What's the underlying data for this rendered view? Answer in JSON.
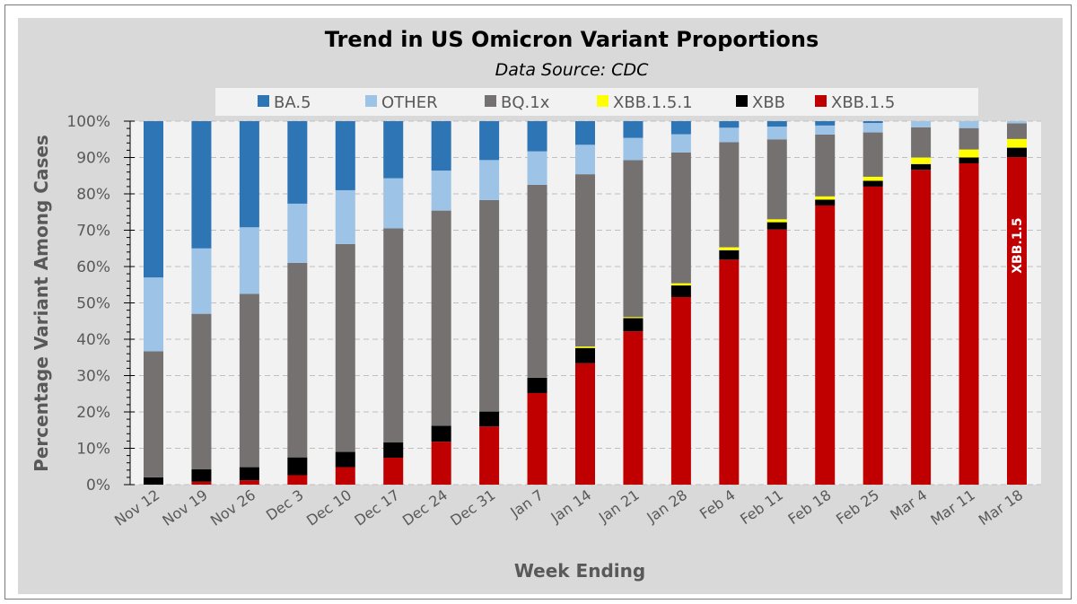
{
  "chart_data": {
    "type": "bar",
    "stacked": true,
    "normalized": true,
    "title": "Trend in US Omicron Variant Proportions",
    "subtitle": "Data Source: CDC",
    "xlabel": "Week Ending",
    "ylabel": "Percentage Variant Among Cases",
    "ylim": [
      0,
      100
    ],
    "yticks": [
      "0%",
      "10%",
      "20%",
      "30%",
      "40%",
      "50%",
      "60%",
      "70%",
      "80%",
      "90%",
      "100%"
    ],
    "grid": "horizontal-dashed",
    "legend_position": "top",
    "categories": [
      "Nov 12",
      "Nov 19",
      "Nov 26",
      "Dec 3",
      "Dec 10",
      "Dec 17",
      "Dec 24",
      "Dec 31",
      "Jan 7",
      "Jan 14",
      "Jan 21",
      "Jan 28",
      "Feb 4",
      "Feb 11",
      "Feb 18",
      "Feb 25",
      "Mar 4",
      "Mar 11",
      "Mar 18"
    ],
    "legend_order": [
      "BA.5",
      "OTHER",
      "BQ.1x",
      "XBB.1.5.1",
      "XBB",
      "XBB.1.5"
    ],
    "stack_order_bottom_to_top": [
      "XBB.1.5",
      "XBB",
      "XBB.1.5.1",
      "BQ.1x",
      "OTHER",
      "BA.5"
    ],
    "series": [
      {
        "name": "XBB.1.5",
        "color": "#c00000",
        "values": [
          0,
          0.8,
          1.2,
          2.6,
          4.8,
          7.4,
          11.8,
          16.0,
          25.2,
          33.4,
          42.2,
          51.6,
          61.9,
          70.2,
          76.8,
          82.0,
          86.6,
          88.4,
          90.1
        ]
      },
      {
        "name": "XBB",
        "color": "#000000",
        "values": [
          2.0,
          3.4,
          3.6,
          4.9,
          4.2,
          4.2,
          4.4,
          4.1,
          4.2,
          4.2,
          3.6,
          3.2,
          2.6,
          2.0,
          1.6,
          1.6,
          1.6,
          1.6,
          2.6
        ]
      },
      {
        "name": "XBB.1.5.1",
        "color": "#ffff00",
        "values": [
          0,
          0,
          0,
          0,
          0,
          0,
          0,
          0,
          0,
          0.4,
          0.3,
          0.6,
          0.8,
          0.8,
          0.9,
          1.1,
          1.8,
          2.2,
          2.4
        ]
      },
      {
        "name": "BQ.1x",
        "color": "#767171",
        "values": [
          34.7,
          42.8,
          47.7,
          53.5,
          57.2,
          58.9,
          59.2,
          58.2,
          53.1,
          47.4,
          43.2,
          36.0,
          28.9,
          22.0,
          17.0,
          12.2,
          8.3,
          5.9,
          4.3
        ]
      },
      {
        "name": "OTHER",
        "color": "#9dc3e6",
        "values": [
          20.3,
          18.0,
          18.3,
          16.3,
          14.8,
          13.8,
          11.0,
          11.0,
          9.2,
          8.1,
          6.1,
          5.0,
          4.0,
          3.5,
          2.5,
          2.6,
          1.7,
          1.9,
          0.6
        ]
      },
      {
        "name": "BA.5",
        "color": "#2e75b6",
        "values": [
          43.0,
          35.0,
          29.2,
          22.7,
          19.0,
          15.7,
          13.6,
          10.7,
          8.3,
          6.5,
          4.6,
          3.6,
          1.8,
          1.5,
          1.2,
          0.5,
          0,
          0,
          0
        ]
      }
    ],
    "annotations": [
      {
        "text": "XBB.1.5",
        "category": "Mar 18",
        "series": "XBB.1.5",
        "orientation": "vertical"
      }
    ]
  }
}
